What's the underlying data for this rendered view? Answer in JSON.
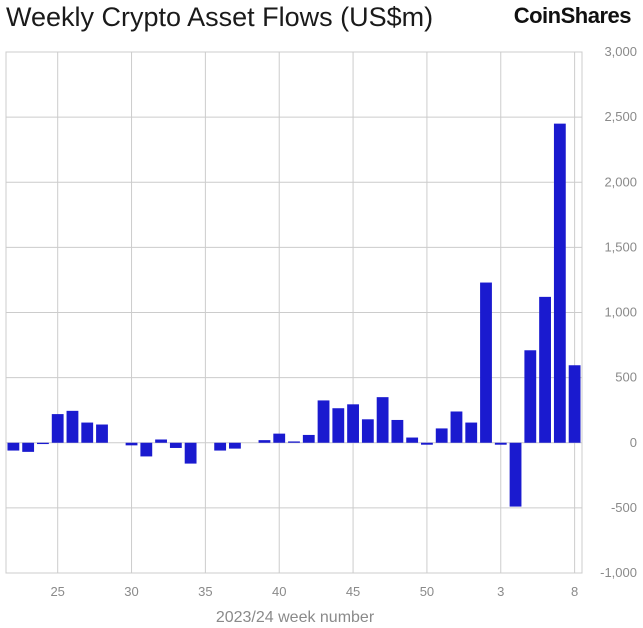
{
  "title": "Weekly Crypto Asset Flows (US$m)",
  "brand": "CoinShares",
  "colors": {
    "bar": "#1a1acf",
    "grid": "#cccccc",
    "tick": "#8a8a8a"
  },
  "chart_data": {
    "type": "bar",
    "title": "Weekly Crypto Asset Flows (US$m)",
    "xlabel": "2023/24 week number",
    "ylabel": "",
    "ylim": [
      -1000,
      3000
    ],
    "yticks": [
      -1000,
      -500,
      0,
      500,
      1000,
      1500,
      2000,
      2500,
      3000
    ],
    "ytick_labels": [
      "-1,000",
      "-500",
      "0",
      "500",
      "1,000",
      "1,500",
      "2,000",
      "2,500",
      "3,000"
    ],
    "xtick_labels": [
      {
        "index": 3,
        "label": "25"
      },
      {
        "index": 8,
        "label": "30"
      },
      {
        "index": 13,
        "label": "35"
      },
      {
        "index": 18,
        "label": "40"
      },
      {
        "index": 23,
        "label": "45"
      },
      {
        "index": 28,
        "label": "50"
      },
      {
        "index": 33,
        "label": "3"
      },
      {
        "index": 38,
        "label": "8"
      }
    ],
    "grid": true,
    "categories": [
      "22",
      "23",
      "24",
      "25",
      "26",
      "27",
      "28",
      "29",
      "30",
      "31",
      "32",
      "33",
      "34",
      "35",
      "36",
      "37",
      "38",
      "39",
      "40",
      "41",
      "42",
      "43",
      "44",
      "45",
      "46",
      "47",
      "48",
      "49",
      "50",
      "51",
      "52",
      "1",
      "2",
      "3",
      "4",
      "5",
      "6",
      "7",
      "8"
    ],
    "values": [
      -60,
      -70,
      -10,
      220,
      245,
      155,
      140,
      0,
      -20,
      -105,
      25,
      -40,
      -160,
      0,
      -60,
      -45,
      0,
      20,
      70,
      10,
      60,
      325,
      265,
      295,
      180,
      350,
      175,
      40,
      -15,
      110,
      240,
      155,
      1230,
      -15,
      -490,
      710,
      1120,
      2450,
      595
    ]
  }
}
